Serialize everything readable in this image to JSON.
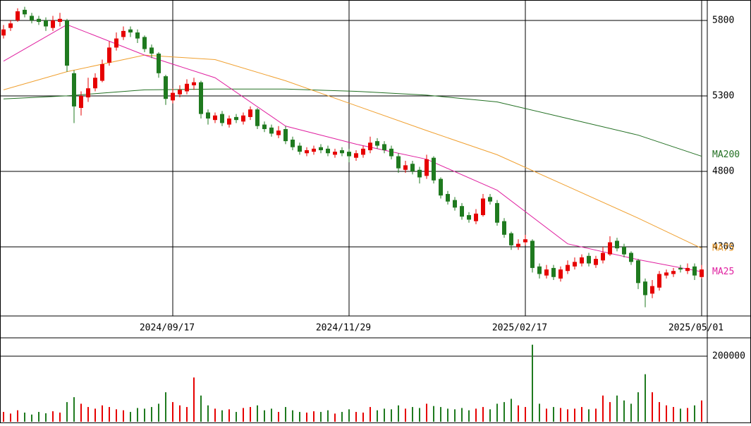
{
  "chart_data": [
    {
      "type": "candlestick",
      "categories": [
        null,
        null,
        null,
        null,
        null,
        null,
        null,
        null,
        null,
        null,
        null,
        null,
        null,
        null,
        null,
        null,
        null,
        null,
        null,
        null,
        null,
        null,
        null,
        null,
        "2024/09/17",
        null,
        null,
        null,
        null,
        null,
        null,
        null,
        null,
        null,
        null,
        null,
        null,
        null,
        null,
        null,
        null,
        null,
        null,
        null,
        null,
        null,
        null,
        null,
        null,
        "2024/11/29",
        null,
        null,
        null,
        null,
        null,
        null,
        null,
        null,
        null,
        null,
        null,
        null,
        null,
        null,
        null,
        null,
        null,
        null,
        null,
        null,
        null,
        null,
        null,
        null,
        "2025/02/17",
        null,
        null,
        null,
        null,
        null,
        null,
        null,
        null,
        null,
        null,
        null,
        null,
        null,
        null,
        null,
        null,
        null,
        null,
        null,
        null,
        null,
        null,
        null,
        null,
        "2025/05/01"
      ],
      "open": [
        5700,
        5750,
        5800,
        5870,
        5830,
        5810,
        5800,
        5750,
        5790,
        5800,
        5450,
        5220,
        5290,
        5350,
        5400,
        5520,
        5620,
        5690,
        5740,
        5720,
        5690,
        5620,
        5580,
        5430,
        5270,
        5310,
        5330,
        5370,
        5390,
        5190,
        5140,
        5180,
        5110,
        5160,
        5130,
        5160,
        5210,
        5110,
        5090,
        5040,
        5080,
        5010,
        4970,
        4920,
        4930,
        4960,
        4950,
        4910,
        4940,
        4930,
        4890,
        4910,
        4940,
        5000,
        4980,
        4950,
        4900,
        4810,
        4850,
        4810,
        4770,
        4890,
        4750,
        4650,
        4610,
        4570,
        4510,
        4470,
        4510,
        4630,
        4590,
        4470,
        4390,
        4300,
        4330,
        4340,
        4170,
        4110,
        4160,
        4090,
        4140,
        4170,
        4190,
        4240,
        4180,
        4210,
        4250,
        4340,
        4300,
        4260,
        4210,
        4070,
        3990,
        4030,
        4110,
        4120,
        4160,
        4140,
        4170,
        4100
      ],
      "high": [
        5770,
        5800,
        5880,
        5890,
        5850,
        5830,
        5820,
        5830,
        5850,
        5810,
        5470,
        5330,
        5420,
        5450,
        5540,
        5660,
        5720,
        5760,
        5760,
        5740,
        5700,
        5640,
        5590,
        5440,
        5350,
        5370,
        5410,
        5420,
        5400,
        5210,
        5190,
        5200,
        5170,
        5180,
        5190,
        5230,
        5220,
        5130,
        5110,
        5100,
        5100,
        5030,
        4990,
        4960,
        4970,
        4980,
        4970,
        4950,
        4960,
        4950,
        4940,
        4970,
        5030,
        5020,
        5000,
        4970,
        4920,
        4870,
        4870,
        4830,
        4910,
        4900,
        4760,
        4670,
        4630,
        4590,
        4530,
        4550,
        4650,
        4650,
        4610,
        4490,
        4400,
        4350,
        4380,
        4350,
        4190,
        4180,
        4180,
        4170,
        4210,
        4230,
        4250,
        4260,
        4240,
        4300,
        4370,
        4360,
        4320,
        4270,
        4220,
        4090,
        4080,
        4140,
        4150,
        4160,
        4180,
        4190,
        4190,
        4180
      ],
      "low": [
        5680,
        5730,
        5790,
        5820,
        5780,
        5770,
        5730,
        5730,
        5760,
        5460,
        5120,
        5170,
        5260,
        5330,
        5390,
        5500,
        5600,
        5670,
        5690,
        5650,
        5590,
        5550,
        5420,
        5240,
        5250,
        5290,
        5310,
        5340,
        5150,
        5110,
        5120,
        5100,
        5090,
        5120,
        5110,
        5140,
        5080,
        5060,
        5030,
        5020,
        4980,
        4940,
        4910,
        4900,
        4910,
        4920,
        4900,
        4890,
        4900,
        4860,
        4870,
        4890,
        4920,
        4950,
        4920,
        4880,
        4790,
        4790,
        4780,
        4720,
        4750,
        4720,
        4620,
        4580,
        4540,
        4480,
        4460,
        4450,
        4500,
        4580,
        4440,
        4360,
        4280,
        4280,
        4310,
        4130,
        4090,
        4090,
        4080,
        4070,
        4120,
        4150,
        4170,
        4170,
        4160,
        4190,
        4240,
        4270,
        4230,
        4180,
        4020,
        3900,
        3960,
        4010,
        4090,
        4100,
        4130,
        4120,
        4080,
        4090
      ],
      "close": [
        5740,
        5780,
        5860,
        5840,
        5800,
        5790,
        5760,
        5800,
        5810,
        5500,
        5230,
        5300,
        5350,
        5420,
        5510,
        5620,
        5680,
        5730,
        5720,
        5680,
        5610,
        5580,
        5450,
        5280,
        5320,
        5340,
        5380,
        5390,
        5180,
        5150,
        5170,
        5120,
        5150,
        5140,
        5170,
        5210,
        5100,
        5080,
        5050,
        5070,
        5000,
        4960,
        4930,
        4940,
        4950,
        4940,
        4920,
        4930,
        4920,
        4900,
        4920,
        4950,
        4990,
        4970,
        4940,
        4900,
        4820,
        4840,
        4800,
        4760,
        4880,
        4740,
        4640,
        4600,
        4560,
        4500,
        4480,
        4520,
        4620,
        4600,
        4460,
        4380,
        4310,
        4320,
        4350,
        4160,
        4120,
        4150,
        4100,
        4150,
        4180,
        4200,
        4230,
        4190,
        4220,
        4260,
        4330,
        4290,
        4250,
        4200,
        4060,
        3980,
        4040,
        4120,
        4130,
        4140,
        4150,
        4160,
        4110,
        4150
      ],
      "up_color": "#e60000",
      "down_color": "#1f7a1f",
      "ylim": [
        3842,
        5935
      ],
      "yticks": [
        4300,
        4800,
        5300,
        5800
      ],
      "grid": true,
      "series": [
        {
          "name": "MA200",
          "color": "#237023",
          "x": [
            0,
            9,
            20,
            30,
            40,
            50,
            60,
            70,
            80,
            90,
            99
          ],
          "values": [
            5280,
            5300,
            5340,
            5345,
            5345,
            5330,
            5305,
            5260,
            5150,
            5040,
            4900
          ]
        },
        {
          "name": "MA75",
          "color": "#f0a030",
          "x": [
            0,
            9,
            20,
            30,
            40,
            50,
            60,
            70,
            80,
            90,
            99
          ],
          "values": [
            5340,
            5460,
            5570,
            5540,
            5400,
            5235,
            5070,
            4910,
            4700,
            4490,
            4290
          ]
        },
        {
          "name": "MA25",
          "color": "#e020a0",
          "x": [
            0,
            9,
            20,
            30,
            40,
            50,
            60,
            70,
            80,
            90,
            99
          ],
          "values": [
            5530,
            5772,
            5570,
            5420,
            5100,
            4980,
            4880,
            4675,
            4320,
            4215,
            4135
          ]
        }
      ]
    },
    {
      "type": "volume",
      "values": [
        30000,
        25000,
        35000,
        28000,
        22000,
        30000,
        26000,
        32000,
        28000,
        60000,
        75000,
        55000,
        45000,
        40000,
        50000,
        45000,
        38000,
        35000,
        30000,
        42000,
        40000,
        45000,
        55000,
        90000,
        60000,
        50000,
        45000,
        135000,
        80000,
        50000,
        40000,
        35000,
        38000,
        30000,
        42000,
        45000,
        50000,
        35000,
        40000,
        30000,
        45000,
        35000,
        30000,
        28000,
        32000,
        30000,
        35000,
        25000,
        30000,
        38000,
        30000,
        28000,
        45000,
        35000,
        40000,
        38000,
        50000,
        40000,
        45000,
        42000,
        55000,
        48000,
        45000,
        40000,
        38000,
        42000,
        35000,
        40000,
        45000,
        38000,
        55000,
        60000,
        70000,
        50000,
        45000,
        235000,
        55000,
        40000,
        45000,
        42000,
        38000,
        40000,
        45000,
        38000,
        40000,
        80000,
        60000,
        80000,
        65000,
        55000,
        90000,
        145000,
        90000,
        60000,
        50000,
        45000,
        40000,
        42000,
        50000,
        65000
      ],
      "ylim": [
        0,
        253800
      ],
      "yticks": [
        200000
      ],
      "grid": true
    }
  ]
}
